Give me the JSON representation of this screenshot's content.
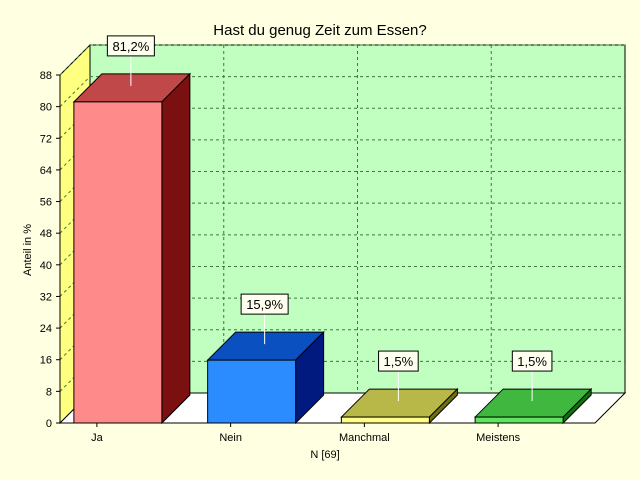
{
  "chart_data": {
    "type": "bar",
    "title": "Hast du genug Zeit zum Essen?",
    "xlabel": "N [69]",
    "ylabel": "Anteil in %",
    "categories": [
      "Ja",
      "Nein",
      "Manchmal",
      "Meistens"
    ],
    "values": [
      81.2,
      15.9,
      1.5,
      1.5
    ],
    "data_labels": [
      "81,2%",
      "15,9%",
      "1,5%",
      "1,5%"
    ],
    "ylim": [
      0,
      88
    ],
    "yticks": [
      "0",
      "8",
      "16",
      "24",
      "32",
      "40",
      "48",
      "56",
      "64",
      "72",
      "80",
      "88"
    ],
    "grid": true,
    "legend": "none",
    "colors": {
      "background": "#ffffe1",
      "plot_back": "#c0ffc0",
      "plot_floor": "#ffffff",
      "plot_wall": "#ffff80",
      "grid": "#3a7a3a",
      "bars": [
        {
          "front": "#ff8a8a",
          "top": "#c04848",
          "side": "#7a1010"
        },
        {
          "front": "#2a8cff",
          "top": "#0a50c0",
          "side": "#001a80"
        },
        {
          "front": "#ffff88",
          "top": "#b8b848",
          "side": "#707010"
        },
        {
          "front": "#5ce65c",
          "top": "#40b840",
          "side": "#107010"
        }
      ]
    }
  }
}
